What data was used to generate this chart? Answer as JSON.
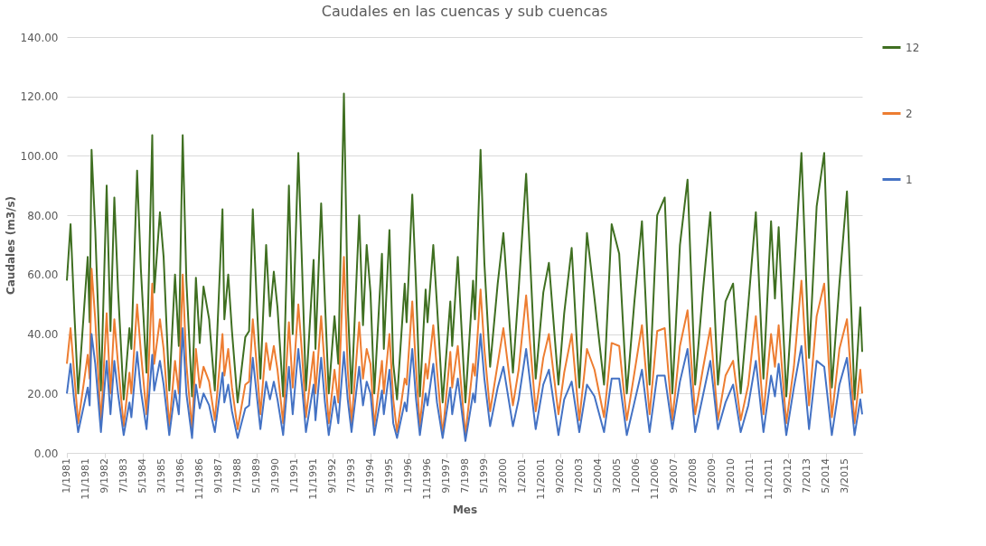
{
  "chart_data": {
    "type": "line",
    "title": "Caudales en las cuencas y sub cuencas",
    "xlabel": "Mes",
    "ylabel": "Caudales (m3/s)",
    "x": [
      "1981-01",
      "1981-03",
      "1981-05",
      "1981-07",
      "1981-12",
      "1982-01",
      "1982-02",
      "1982-04",
      "1982-07",
      "1982-10",
      "1982-12",
      "1983-02",
      "1983-04",
      "1983-07",
      "1983-10",
      "1983-11",
      "1984-02",
      "1984-04",
      "1984-07",
      "1984-10",
      "1984-11",
      "1985-02",
      "1985-04",
      "1985-07",
      "1985-10",
      "1985-12",
      "1986-02",
      "1986-04",
      "1986-07",
      "1986-09",
      "1986-11",
      "1987-01",
      "1987-04",
      "1987-07",
      "1987-11",
      "1987-12",
      "1988-02",
      "1988-04",
      "1988-07",
      "1988-11",
      "1989-01",
      "1989-03",
      "1989-05",
      "1989-07",
      "1989-10",
      "1989-12",
      "1990-02",
      "1990-04",
      "1990-07",
      "1990-10",
      "1990-12",
      "1991-03",
      "1991-05",
      "1991-07",
      "1991-11",
      "1991-12",
      "1992-03",
      "1992-05",
      "1992-07",
      "1992-10",
      "1992-12",
      "1993-03",
      "1993-05",
      "1993-07",
      "1993-11",
      "1994-01",
      "1994-03",
      "1994-05",
      "1994-07",
      "1994-11",
      "1994-12",
      "1995-03",
      "1995-05",
      "1995-07",
      "1995-11",
      "1995-12",
      "1996-03",
      "1996-05",
      "1996-07",
      "1996-10",
      "1996-11",
      "1997-02",
      "1997-04",
      "1997-07",
      "1997-11",
      "1997-12",
      "1998-03",
      "1998-07",
      "1998-11",
      "1998-12",
      "1999-03",
      "1999-05",
      "1999-08",
      "1999-12",
      "2000-03",
      "2000-08",
      "2000-11",
      "2001-03",
      "2001-08",
      "2001-12",
      "2002-03",
      "2002-08",
      "2002-11",
      "2003-03",
      "2003-07",
      "2003-11",
      "2004-03",
      "2004-08",
      "2004-12",
      "2005-04",
      "2005-08",
      "2005-12",
      "2006-04",
      "2006-08",
      "2006-12",
      "2007-04",
      "2007-08",
      "2007-12",
      "2008-04",
      "2008-08",
      "2008-12",
      "2009-04",
      "2009-08",
      "2009-12",
      "2010-04",
      "2010-08",
      "2010-12",
      "2011-04",
      "2011-08",
      "2011-12",
      "2012-02",
      "2012-04",
      "2012-08",
      "2012-12",
      "2013-04",
      "2013-08",
      "2013-12",
      "2014-04",
      "2014-08",
      "2014-12",
      "2015-04",
      "2015-08",
      "2015-11",
      "2015-12"
    ],
    "series": [
      {
        "name": "12",
        "color": "#3f6f21",
        "values": [
          58,
          77,
          47,
          20,
          66,
          44,
          102,
          75,
          21,
          90,
          41,
          86,
          55,
          18,
          42,
          35,
          95,
          62,
          27,
          107,
          54,
          81,
          66,
          21,
          60,
          36,
          107,
          58,
          19,
          59,
          37,
          56,
          45,
          21,
          82,
          45,
          60,
          41,
          17,
          39,
          41,
          82,
          52,
          25,
          70,
          46,
          61,
          49,
          19,
          90,
          40,
          101,
          62,
          21,
          65,
          35,
          84,
          51,
          20,
          46,
          30,
          121,
          50,
          20,
          80,
          43,
          70,
          54,
          20,
          67,
          35,
          75,
          30,
          18,
          57,
          44,
          87,
          56,
          19,
          55,
          44,
          70,
          50,
          17,
          51,
          36,
          66,
          17,
          58,
          45,
          102,
          64,
          29,
          57,
          74,
          27,
          55,
          94,
          25,
          54,
          64,
          23,
          47,
          69,
          22,
          74,
          52,
          23,
          77,
          67,
          20,
          51,
          78,
          23,
          80,
          86,
          20,
          70,
          92,
          23,
          54,
          81,
          23,
          51,
          57,
          20,
          50,
          81,
          25,
          78,
          52,
          76,
          19,
          59,
          101,
          32,
          83,
          101,
          22,
          57,
          88,
          18,
          49,
          34
        ]
      },
      {
        "name": "2",
        "color": "#ed7d31",
        "values": [
          30,
          42,
          26,
          10,
          33,
          25,
          62,
          45,
          10,
          47,
          20,
          45,
          30,
          9,
          27,
          20,
          50,
          34,
          13,
          57,
          30,
          45,
          35,
          9,
          31,
          20,
          60,
          30,
          8,
          35,
          22,
          29,
          24,
          11,
          40,
          26,
          35,
          22,
          8,
          23,
          24,
          45,
          30,
          13,
          37,
          28,
          36,
          28,
          10,
          44,
          22,
          50,
          33,
          12,
          34,
          20,
          46,
          28,
          10,
          28,
          17,
          66,
          28,
          10,
          44,
          25,
          35,
          30,
          9,
          31,
          20,
          40,
          18,
          7,
          25,
          23,
          51,
          28,
          9,
          30,
          25,
          43,
          28,
          6,
          34,
          22,
          36,
          6,
          30,
          26,
          55,
          35,
          14,
          30,
          42,
          16,
          28,
          53,
          14,
          32,
          40,
          13,
          27,
          40,
          11,
          35,
          28,
          12,
          37,
          36,
          11,
          27,
          43,
          13,
          41,
          42,
          11,
          36,
          48,
          13,
          28,
          42,
          11,
          26,
          31,
          11,
          23,
          46,
          13,
          40,
          29,
          43,
          10,
          29,
          58,
          16,
          46,
          57,
          12,
          35,
          45,
          10,
          28,
          20
        ]
      },
      {
        "name": "1",
        "color": "#4472c4",
        "values": [
          20,
          30,
          17,
          7,
          22,
          16,
          40,
          30,
          7,
          31,
          13,
          31,
          20,
          6,
          17,
          12,
          34,
          21,
          8,
          33,
          21,
          31,
          23,
          6,
          21,
          13,
          42,
          20,
          5,
          23,
          15,
          20,
          16,
          7,
          27,
          17,
          23,
          14,
          5,
          15,
          16,
          32,
          20,
          8,
          24,
          18,
          24,
          18,
          6,
          29,
          13,
          35,
          22,
          7,
          23,
          11,
          32,
          17,
          6,
          19,
          10,
          34,
          18,
          7,
          29,
          16,
          24,
          20,
          6,
          21,
          13,
          28,
          10,
          5,
          17,
          14,
          35,
          18,
          6,
          20,
          16,
          30,
          17,
          5,
          22,
          13,
          25,
          4,
          20,
          17,
          40,
          25,
          9,
          22,
          29,
          9,
          18,
          35,
          8,
          23,
          28,
          6,
          18,
          24,
          7,
          23,
          19,
          7,
          25,
          25,
          6,
          17,
          28,
          7,
          26,
          26,
          8,
          24,
          35,
          7,
          19,
          31,
          8,
          17,
          23,
          7,
          16,
          31,
          7,
          26,
          19,
          30,
          6,
          22,
          36,
          8,
          31,
          29,
          6,
          23,
          32,
          6,
          18,
          13
        ]
      }
    ],
    "xlim": [
      "1981-01",
      "2015-12"
    ],
    "xticks": [
      {
        "value": "1981-01",
        "label": "1/1981"
      },
      {
        "value": "1981-11",
        "label": "11/1981"
      },
      {
        "value": "1982-09",
        "label": "9/1982"
      },
      {
        "value": "1983-07",
        "label": "7/1983"
      },
      {
        "value": "1984-05",
        "label": "5/1984"
      },
      {
        "value": "1985-03",
        "label": "3/1985"
      },
      {
        "value": "1986-01",
        "label": "1/1986"
      },
      {
        "value": "1986-11",
        "label": "11/1986"
      },
      {
        "value": "1987-09",
        "label": "9/1987"
      },
      {
        "value": "1988-07",
        "label": "7/1988"
      },
      {
        "value": "1989-05",
        "label": "5/1989"
      },
      {
        "value": "1990-03",
        "label": "3/1990"
      },
      {
        "value": "1991-01",
        "label": "1/1991"
      },
      {
        "value": "1991-11",
        "label": "11/1991"
      },
      {
        "value": "1992-09",
        "label": "9/1992"
      },
      {
        "value": "1993-07",
        "label": "7/1993"
      },
      {
        "value": "1994-05",
        "label": "5/1994"
      },
      {
        "value": "1995-03",
        "label": "3/1995"
      },
      {
        "value": "1996-01",
        "label": "1/1996"
      },
      {
        "value": "1996-11",
        "label": "11/1996"
      },
      {
        "value": "1997-09",
        "label": "9/1997"
      },
      {
        "value": "1998-07",
        "label": "7/1998"
      },
      {
        "value": "1999-05",
        "label": "5/1999"
      },
      {
        "value": "2000-03",
        "label": "3/2000"
      },
      {
        "value": "2001-01",
        "label": "1/2001"
      },
      {
        "value": "2001-11",
        "label": "11/2001"
      },
      {
        "value": "2002-09",
        "label": "9/2002"
      },
      {
        "value": "2003-07",
        "label": "7/2003"
      },
      {
        "value": "2004-05",
        "label": "5/2004"
      },
      {
        "value": "2005-03",
        "label": "3/2005"
      },
      {
        "value": "2006-01",
        "label": "1/2006"
      },
      {
        "value": "2006-11",
        "label": "11/2006"
      },
      {
        "value": "2007-09",
        "label": "9/2007"
      },
      {
        "value": "2008-07",
        "label": "7/2008"
      },
      {
        "value": "2009-05",
        "label": "5/2009"
      },
      {
        "value": "2010-03",
        "label": "3/2010"
      },
      {
        "value": "2011-01",
        "label": "1/2011"
      },
      {
        "value": "2011-11",
        "label": "11/2011"
      },
      {
        "value": "2012-09",
        "label": "9/2012"
      },
      {
        "value": "2013-07",
        "label": "7/2013"
      },
      {
        "value": "2014-05",
        "label": "5/2014"
      },
      {
        "value": "2015-03",
        "label": "3/2015"
      }
    ],
    "ylim": [
      0,
      140
    ],
    "yticks": [
      {
        "value": 0,
        "label": "0.00"
      },
      {
        "value": 20,
        "label": "20.00"
      },
      {
        "value": 40,
        "label": "40.00"
      },
      {
        "value": 60,
        "label": "60.00"
      },
      {
        "value": 80,
        "label": "80.00"
      },
      {
        "value": 100,
        "label": "100.00"
      },
      {
        "value": 120,
        "label": "120.00"
      },
      {
        "value": 140,
        "label": "140.00"
      }
    ],
    "grid": "y",
    "legend": "right",
    "marker": "none",
    "line_style": "solid"
  }
}
